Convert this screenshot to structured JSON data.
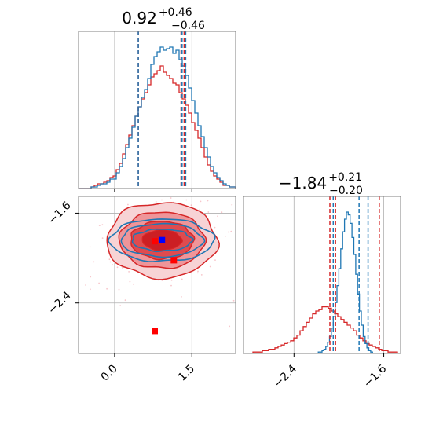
{
  "chart_data": {
    "type": "corner",
    "colors": {
      "series_a": "#1f77b4",
      "series_b": "#d62728",
      "marker_a": "#0000ff",
      "marker_b": "#ff0000",
      "grid": "#b0b0b0",
      "frame": "#808080"
    },
    "titles": [
      {
        "main": "0.92",
        "sup": "+0.46",
        "sub": "−0.46"
      },
      {
        "main": "−1.84",
        "sup": "+0.21",
        "sub": "−0.20"
      }
    ],
    "param1": {
      "range": [
        -0.7,
        2.35
      ],
      "ticks": [
        0.0,
        1.5
      ],
      "tick_labels": [
        "0.0",
        "1.5"
      ],
      "hist_blue_x": [
        -0.7,
        2.35
      ],
      "hist_blue": [
        0,
        0,
        0,
        0,
        1,
        1,
        2,
        3,
        3,
        4,
        6,
        6,
        10,
        14,
        19,
        26,
        32,
        39,
        46,
        52,
        58,
        63,
        70,
        79,
        84,
        87,
        90,
        88,
        89,
        90,
        86,
        88,
        82,
        78,
        72,
        64,
        56,
        48,
        40,
        33,
        26,
        20,
        14,
        10,
        7,
        5,
        3,
        2,
        1,
        1
      ],
      "hist_red": [
        0,
        0,
        0,
        0,
        1,
        2,
        3,
        3,
        4,
        5,
        7,
        8,
        12,
        16,
        22,
        28,
        34,
        40,
        46,
        52,
        57,
        61,
        66,
        71,
        73,
        75,
        78,
        74,
        72,
        70,
        67,
        66,
        61,
        57,
        53,
        48,
        42,
        37,
        32,
        26,
        20,
        15,
        11,
        8,
        6,
        4,
        2,
        2,
        1,
        1
      ],
      "quantiles_blue": [
        0.46,
        1.31,
        1.38
      ],
      "quantiles_red": [
        0.46,
        1.29,
        1.35
      ]
    },
    "param2": {
      "range": [
        -2.85,
        -1.45
      ],
      "ticks": [
        -2.4,
        -1.6
      ],
      "tick_labels": [
        "−2.4",
        "−1.6"
      ],
      "hist_blue_x": [
        -2.2,
        -1.7
      ],
      "hist_blue": [
        0,
        1,
        1,
        2,
        3,
        5,
        8,
        12,
        18,
        26,
        36,
        48,
        60,
        74,
        86,
        95,
        100,
        98,
        92,
        82,
        70,
        56,
        42,
        30,
        20,
        12,
        7,
        4,
        2,
        1
      ],
      "hist_red_x": [
        -2.85,
        -1.45
      ],
      "hist_red": [
        0,
        0,
        0,
        1,
        1,
        1,
        2,
        2,
        3,
        3,
        4,
        5,
        6,
        7,
        8,
        9,
        11,
        13,
        16,
        19,
        22,
        25,
        28,
        30,
        31,
        33,
        33,
        32,
        30,
        28,
        26,
        24,
        22,
        20,
        18,
        16,
        13,
        11,
        9,
        7,
        6,
        5,
        4,
        3,
        2,
        2,
        1,
        1,
        1,
        0
      ],
      "quantiles_blue": [
        -2.05,
        -1.82,
        -1.74
      ],
      "quantiles_red": [
        -2.08,
        -2.03,
        -1.64
      ]
    },
    "scatter_2d": {
      "markers_red": [
        [
          1.15,
          -1.22
        ],
        [
          0.78,
          -1.85
        ],
        [
          1.15,
          -2.02
        ],
        [
          0.78,
          -2.65
        ]
      ],
      "markers_blue": [
        [
          0.92,
          -1.84
        ]
      ]
    }
  }
}
